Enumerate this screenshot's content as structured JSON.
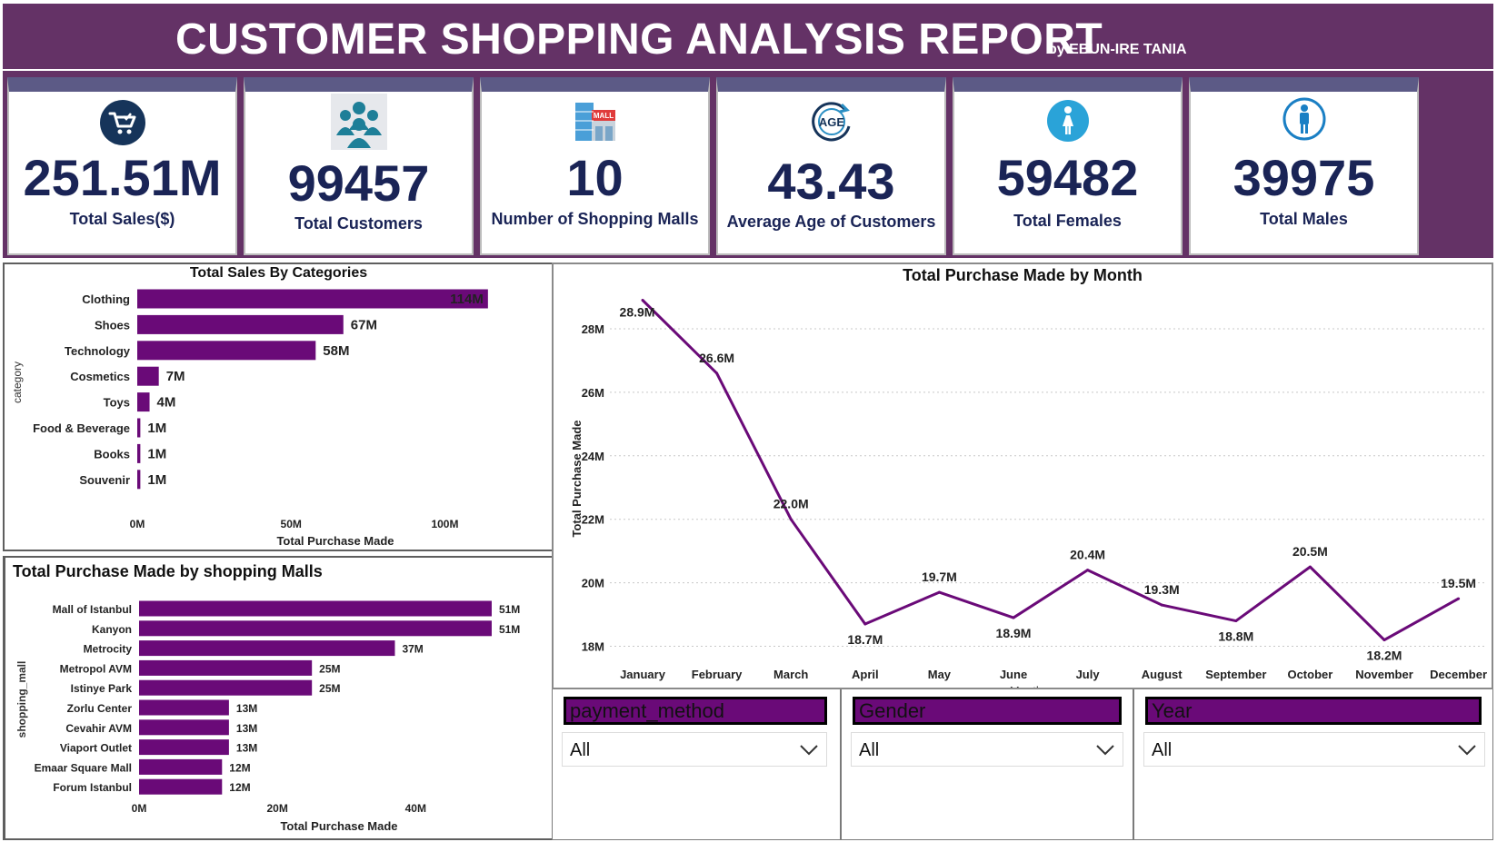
{
  "header": {
    "title": "CUSTOMER SHOPPING ANALYSIS REPORT",
    "byline": "by EBUN-IRE TANIA"
  },
  "kpis": [
    {
      "value": "251.51M",
      "label": "Total Sales($)",
      "icon": "shopping-cart-icon"
    },
    {
      "value": "99457",
      "label": "Total Customers",
      "icon": "people-group-icon"
    },
    {
      "value": "10",
      "label": "Number of Shopping Malls",
      "icon": "mall-building-icon"
    },
    {
      "value": "43.43",
      "label": "Average Age of Customers",
      "icon": "age-icon"
    },
    {
      "value": "59482",
      "label": "Total Females",
      "icon": "female-icon"
    },
    {
      "value": "39975",
      "label": "Total Males",
      "icon": "male-icon"
    }
  ],
  "colors": {
    "purple": "#6a0a78",
    "header": "#643266",
    "kpi_text": "#1a2456"
  },
  "chart_data": [
    {
      "id": "categories",
      "type": "bar",
      "orientation": "horizontal",
      "title": "Total Sales By Categories",
      "xlabel": "Total Purchase Made",
      "ylabel": "category",
      "categories": [
        "Clothing",
        "Shoes",
        "Technology",
        "Cosmetics",
        "Toys",
        "Food & Beverage",
        "Books",
        "Souvenir"
      ],
      "values": [
        114,
        67,
        58,
        7,
        4,
        1,
        1,
        1
      ],
      "data_labels": [
        "114M",
        "67M",
        "58M",
        "7M",
        "4M",
        "1M",
        "1M",
        "1M"
      ],
      "xticks": [
        "0M",
        "50M",
        "100M"
      ],
      "xtick_values": [
        0,
        50,
        100
      ],
      "xlim": [
        0,
        130
      ],
      "unit": "M"
    },
    {
      "id": "malls",
      "type": "bar",
      "orientation": "horizontal",
      "title": "Total Purchase Made by shopping Malls",
      "xlabel": "Total Purchase Made",
      "ylabel": "shopping_mall",
      "categories": [
        "Mall of Istanbul",
        "Kanyon",
        "Metrocity",
        "Metropol AVM",
        "Istinye Park",
        "Zorlu Center",
        "Cevahir AVM",
        "Viaport Outlet",
        "Emaar Square Mall",
        "Forum Istanbul"
      ],
      "values": [
        51,
        51,
        37,
        25,
        25,
        13,
        13,
        13,
        12,
        12
      ],
      "data_labels": [
        "51M",
        "51M",
        "37M",
        "25M",
        "25M",
        "13M",
        "13M",
        "13M",
        "12M",
        "12M"
      ],
      "xticks": [
        "0M",
        "20M",
        "40M"
      ],
      "xtick_values": [
        0,
        20,
        40
      ],
      "xlim": [
        0,
        56
      ],
      "unit": "M"
    },
    {
      "id": "months",
      "type": "line",
      "title": "Total Purchase Made by Month",
      "xlabel": "Month",
      "ylabel": "Total Purchase Made",
      "x": [
        "January",
        "February",
        "March",
        "April",
        "May",
        "June",
        "July",
        "August",
        "September",
        "October",
        "November",
        "December"
      ],
      "values": [
        28.9,
        26.6,
        22.0,
        18.7,
        19.7,
        18.9,
        20.4,
        19.3,
        18.8,
        20.5,
        18.2,
        19.5
      ],
      "data_labels": [
        "28.9M",
        "26.6M",
        "22.0M",
        "18.7M",
        "19.7M",
        "18.9M",
        "20.4M",
        "19.3M",
        "18.8M",
        "20.5M",
        "18.2M",
        "19.5M"
      ],
      "yticks": [
        "18M",
        "20M",
        "22M",
        "24M",
        "26M",
        "28M"
      ],
      "ytick_values": [
        18,
        20,
        22,
        24,
        26,
        28
      ],
      "ylim": [
        17.5,
        29
      ],
      "grid": true
    }
  ],
  "slicers": [
    {
      "label": "payment_method",
      "value": "All"
    },
    {
      "label": "Gender",
      "value": "All"
    },
    {
      "label": "Year",
      "value": "All"
    }
  ]
}
